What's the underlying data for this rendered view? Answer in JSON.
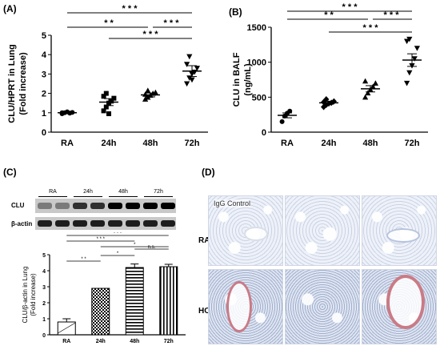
{
  "panel_labels": {
    "a": "(A)",
    "b": "(B)",
    "c": "(C)",
    "d": "(D)"
  },
  "chart_data": [
    {
      "id": "A",
      "type": "scatter",
      "ylabel": "CLU/HPRT in Lung\n(Fold increase)",
      "categories": [
        "RA",
        "24h",
        "48h",
        "72h"
      ],
      "ylim": [
        0,
        5
      ],
      "yticks": [
        "0",
        "1",
        "2",
        "3",
        "4",
        "5"
      ],
      "markers": [
        "circle",
        "square",
        "triangle-up",
        "triangle-down"
      ],
      "points": [
        [
          0.95,
          1.0,
          1.05,
          0.98,
          1.02,
          1.0
        ],
        [
          1.1,
          1.3,
          1.5,
          1.6,
          1.75,
          1.85,
          2.0,
          0.95
        ],
        [
          1.7,
          1.8,
          1.9,
          2.0,
          2.05,
          1.95,
          2.15
        ],
        [
          2.5,
          2.8,
          3.0,
          3.1,
          3.3,
          3.5,
          3.9,
          2.7
        ]
      ],
      "means": [
        1.0,
        1.55,
        1.92,
        3.15
      ],
      "sem": [
        0.05,
        0.18,
        0.1,
        0.28
      ],
      "significance": [
        {
          "from": 0,
          "to": 3,
          "label": "* * *"
        },
        {
          "from": 0,
          "to": 2,
          "label": "* *"
        },
        {
          "from": 2,
          "to": 3,
          "label": "* * *"
        },
        {
          "from": 1,
          "to": 3,
          "label": "* * *"
        }
      ]
    },
    {
      "id": "B",
      "type": "scatter",
      "ylabel": "CLU in BALF\n(ng/mL)",
      "categories": [
        "RA",
        "24h",
        "48h",
        "72h"
      ],
      "ylim": [
        0,
        1500
      ],
      "yticks": [
        "0",
        "500",
        "1000",
        "1500"
      ],
      "markers": [
        "circle",
        "diamond",
        "triangle-up",
        "triangle-down"
      ],
      "points": [
        [
          150,
          230,
          270,
          300
        ],
        [
          360,
          390,
          410,
          420,
          440,
          430,
          470
        ],
        [
          500,
          560,
          610,
          650,
          700,
          730
        ],
        [
          700,
          850,
          950,
          1050,
          1200,
          1300,
          1330
        ]
      ],
      "means": [
        240,
        420,
        620,
        1030
      ],
      "sem": [
        35,
        20,
        45,
        90
      ],
      "significance": [
        {
          "from": 0,
          "to": 3,
          "label": "* * *"
        },
        {
          "from": 0,
          "to": 2,
          "label": "* *"
        },
        {
          "from": 2,
          "to": 3,
          "label": "* * *"
        },
        {
          "from": 1,
          "to": 3,
          "label": "* * *"
        }
      ]
    },
    {
      "id": "C",
      "type": "bar",
      "ylabel": "CLU/β-actin in Lung\n(Fold increase)",
      "categories": [
        "RA",
        "24h",
        "48h",
        "72h"
      ],
      "values": [
        0.8,
        2.9,
        4.2,
        4.25
      ],
      "sem": [
        0.2,
        0.0,
        0.22,
        0.15
      ],
      "ylim": [
        0,
        5
      ],
      "yticks": [
        "0",
        "1",
        "2",
        "3",
        "4",
        "5"
      ],
      "significance": [
        {
          "from": 0,
          "to": 3,
          "label": "* * *"
        },
        {
          "from": 0,
          "to": 2,
          "label": "* * *"
        },
        {
          "from": 1,
          "to": 3,
          "label": "*"
        },
        {
          "from": 0,
          "to": 1,
          "label": "* *"
        },
        {
          "from": 1,
          "to": 2,
          "label": "*"
        },
        {
          "from": 2,
          "to": 3,
          "label": "n.s."
        }
      ]
    }
  ],
  "blot": {
    "groups": [
      "RA",
      "24h",
      "48h",
      "72h"
    ],
    "rows": [
      "CLU",
      "β-actin"
    ]
  },
  "histology": {
    "rows": [
      "RA",
      "HO"
    ],
    "control_label": "IgG Control"
  }
}
